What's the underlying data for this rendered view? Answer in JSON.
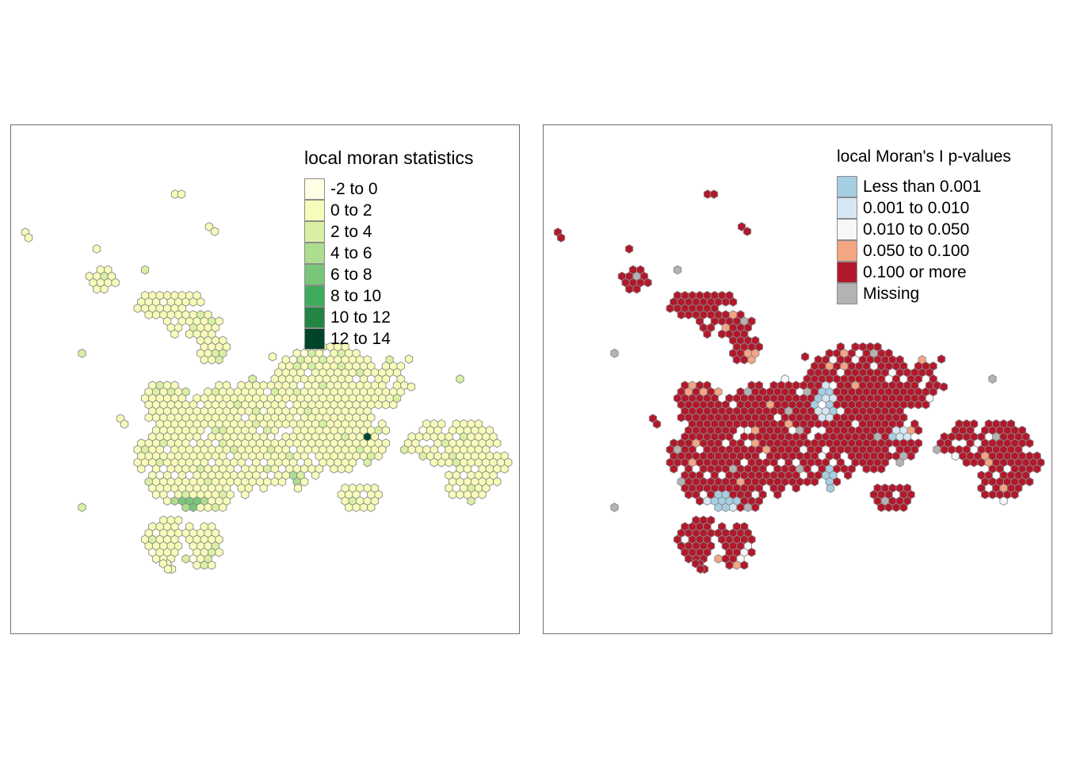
{
  "maps": [
    {
      "id": "left",
      "legend": {
        "title": "local moran statistics",
        "items": [
          {
            "label": "-2 to 0",
            "color": "#ffffe5"
          },
          {
            "label": "0 to 2",
            "color": "#f7fcb9"
          },
          {
            "label": "2 to 4",
            "color": "#d9f0a3"
          },
          {
            "label": "4 to 6",
            "color": "#addd8e"
          },
          {
            "label": "6 to 8",
            "color": "#78c679"
          },
          {
            "label": "8 to 10",
            "color": "#41ab5d"
          },
          {
            "label": "10 to 12",
            "color": "#238443"
          },
          {
            "label": "12 to 14",
            "color": "#004529"
          }
        ]
      }
    },
    {
      "id": "right",
      "legend": {
        "title": "local Moran's I p-values",
        "items": [
          {
            "label": "Less than 0.001",
            "color": "#a6cee3"
          },
          {
            "label": "0.001 to 0.010",
            "color": "#d6e6f2"
          },
          {
            "label": "0.010 to 0.050",
            "color": "#f7f7f7"
          },
          {
            "label": "0.050 to 0.100",
            "color": "#f4a582"
          },
          {
            "label": "0.100 or more",
            "color": "#b2182b"
          },
          {
            "label": "Missing",
            "color": "#b3b3b3"
          }
        ]
      }
    }
  ]
}
